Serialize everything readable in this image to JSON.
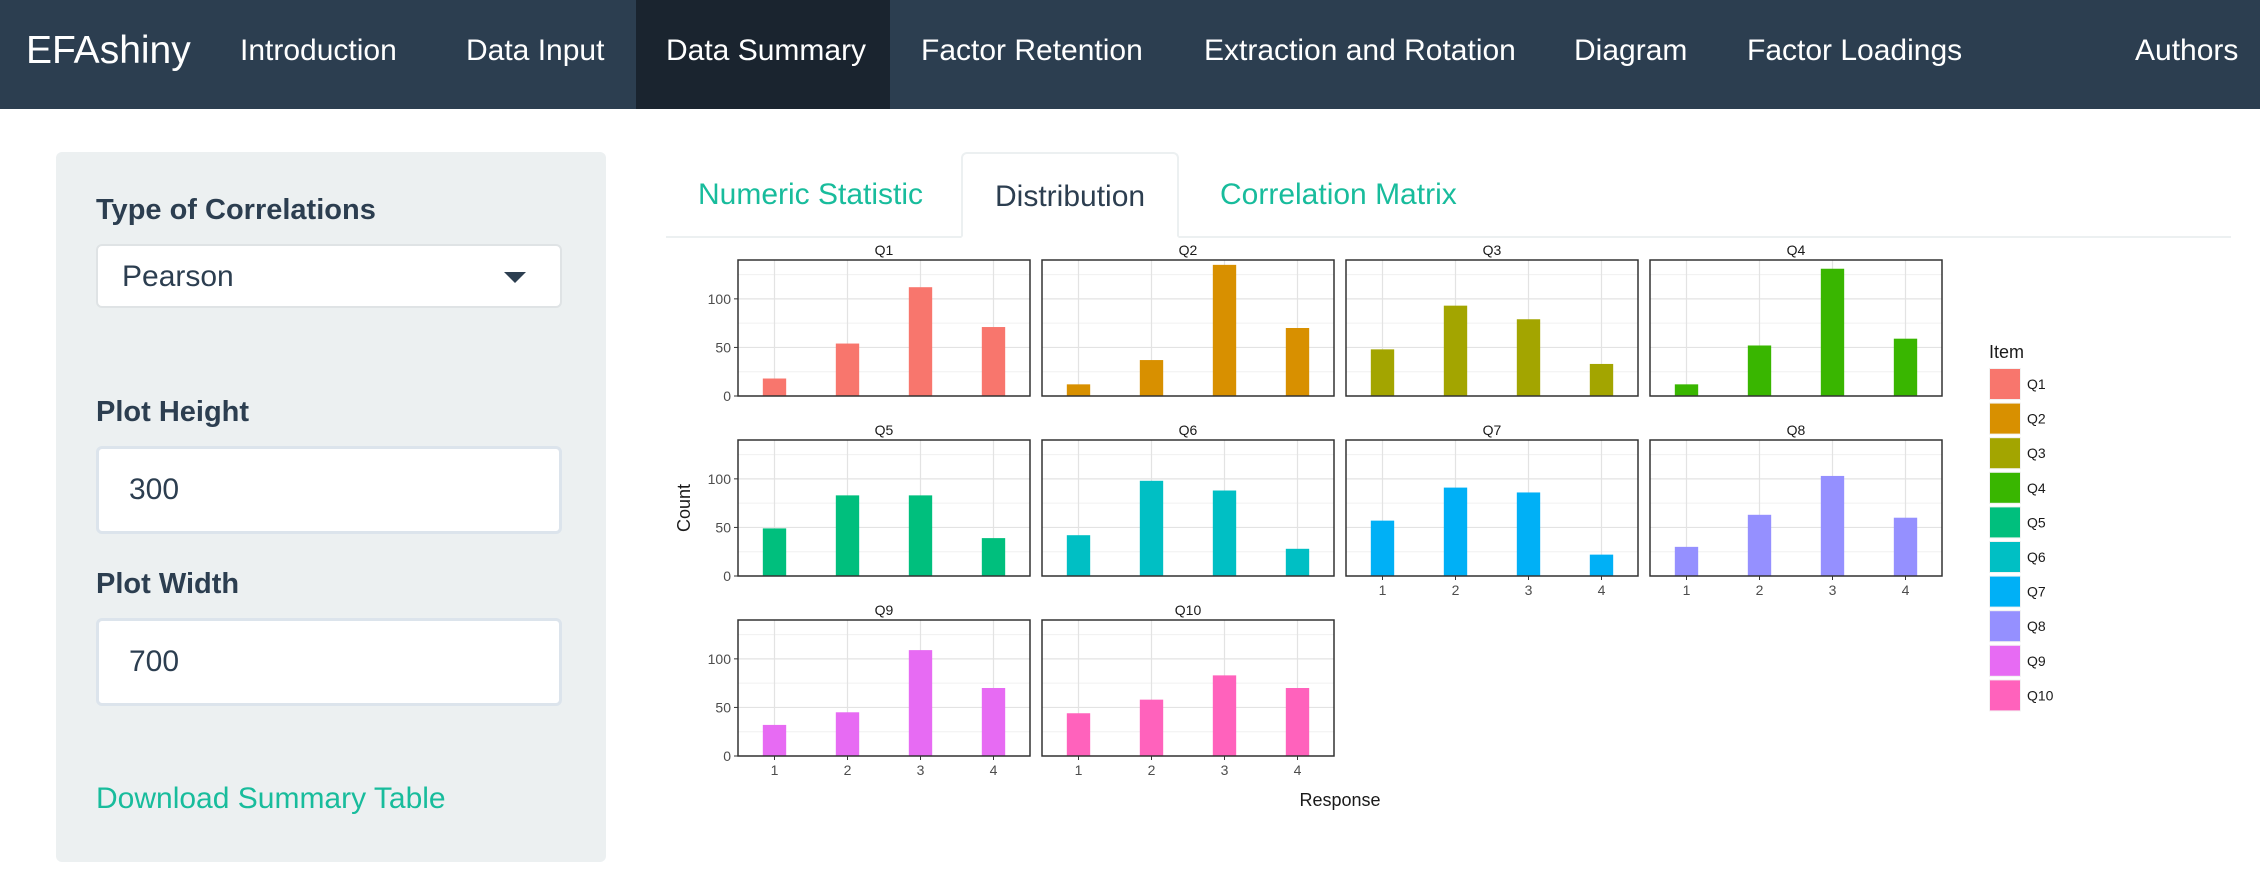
{
  "navbar": {
    "brand": "EFAshiny",
    "items": [
      {
        "label": "Introduction",
        "active": false
      },
      {
        "label": "Data Input",
        "active": false
      },
      {
        "label": "Data Summary",
        "active": true
      },
      {
        "label": "Factor Retention",
        "active": false
      },
      {
        "label": "Extraction and Rotation",
        "active": false
      },
      {
        "label": "Diagram",
        "active": false
      },
      {
        "label": "Factor Loadings",
        "active": false
      },
      {
        "label": "Authors",
        "active": false
      }
    ]
  },
  "sidebar": {
    "correlation_label": "Type of Correlations",
    "correlation_value": "Pearson",
    "plot_height_label": "Plot Height",
    "plot_height_value": "300",
    "plot_width_label": "Plot Width",
    "plot_width_value": "700",
    "download_label": "Download Summary Table"
  },
  "tabs": [
    {
      "label": "Numeric Statistic",
      "active": false
    },
    {
      "label": "Distribution",
      "active": true
    },
    {
      "label": "Correlation Matrix",
      "active": false
    }
  ],
  "chart_data": {
    "type": "bar",
    "xlabel": "Response",
    "ylabel": "Count",
    "ylim": [
      0,
      140
    ],
    "yticks": [
      0,
      50,
      100
    ],
    "categories": [
      "1",
      "2",
      "3",
      "4"
    ],
    "legend": {
      "title": "Item",
      "position": "right"
    },
    "grid": true,
    "series": [
      {
        "name": "Q1",
        "color": "#f8766d",
        "values": [
          18,
          54,
          112,
          71
        ]
      },
      {
        "name": "Q2",
        "color": "#d89000",
        "values": [
          12,
          37,
          135,
          70
        ]
      },
      {
        "name": "Q3",
        "color": "#a3a500",
        "values": [
          48,
          93,
          79,
          33
        ]
      },
      {
        "name": "Q4",
        "color": "#39b600",
        "values": [
          12,
          52,
          131,
          59
        ]
      },
      {
        "name": "Q5",
        "color": "#00bf7d",
        "values": [
          49,
          83,
          83,
          39
        ]
      },
      {
        "name": "Q6",
        "color": "#00bfc4",
        "values": [
          42,
          98,
          88,
          28
        ]
      },
      {
        "name": "Q7",
        "color": "#00b0f6",
        "values": [
          57,
          91,
          86,
          22
        ]
      },
      {
        "name": "Q8",
        "color": "#9590ff",
        "values": [
          30,
          63,
          103,
          60
        ]
      },
      {
        "name": "Q9",
        "color": "#e76bf3",
        "values": [
          32,
          45,
          109,
          70
        ]
      },
      {
        "name": "Q10",
        "color": "#ff62bc",
        "values": [
          44,
          58,
          83,
          70
        ]
      }
    ]
  }
}
